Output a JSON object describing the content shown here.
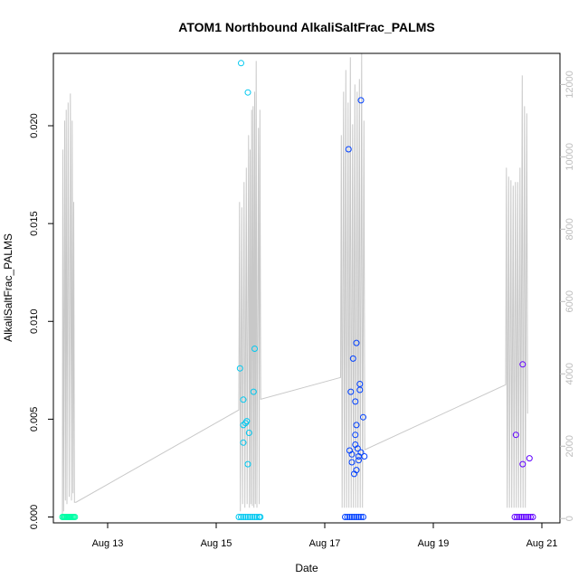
{
  "chart_data": {
    "type": "scatter",
    "title": "ATOM1 Northbound AlkaliSaltFrac_PALMS",
    "xlabel": "Date",
    "ylabel": "AlkaliSaltFrac_PALMS",
    "x_ticks": [
      "Aug 13",
      "Aug 15",
      "Aug 17",
      "Aug 19",
      "Aug 21"
    ],
    "y_ticks": [
      "0.000",
      "0.005",
      "0.010",
      "0.015",
      "0.020"
    ],
    "y2_ticks": [
      "0",
      "2000",
      "4000",
      "6000",
      "8000",
      "10000",
      "12000"
    ],
    "xlim": [
      "2016-08-12 00:00",
      "2016-08-21 08:00"
    ],
    "ylim": [
      -0.0003,
      0.0237
    ],
    "y2lim": [
      -120,
      12860
    ],
    "grid": false,
    "point_colors": [
      "#00ffa6",
      "#00c8f0",
      "#0040ff",
      "#6000ff"
    ],
    "line_color": "#c8c8c8",
    "series": [
      {
        "color": "#00ffa6",
        "points": [
          [
            "2016-08-12 04:00",
            0
          ],
          [
            "2016-08-12 04:30",
            0
          ],
          [
            "2016-08-12 05:00",
            0
          ],
          [
            "2016-08-12 05:30",
            0
          ],
          [
            "2016-08-12 06:00",
            0
          ],
          [
            "2016-08-12 06:30",
            0
          ],
          [
            "2016-08-12 07:00",
            0
          ],
          [
            "2016-08-12 07:30",
            0
          ],
          [
            "2016-08-12 08:00",
            0
          ],
          [
            "2016-08-12 08:30",
            0
          ],
          [
            "2016-08-12 09:00",
            0
          ],
          [
            "2016-08-12 09:30",
            0
          ]
        ]
      },
      {
        "color": "#00c8f0",
        "points": [
          [
            "2016-08-15 10:00",
            0
          ],
          [
            "2016-08-15 11:00",
            0
          ],
          [
            "2016-08-15 12:00",
            0
          ],
          [
            "2016-08-15 13:00",
            0
          ],
          [
            "2016-08-15 14:00",
            0
          ],
          [
            "2016-08-15 15:00",
            0
          ],
          [
            "2016-08-15 16:00",
            0
          ],
          [
            "2016-08-15 17:00",
            0
          ],
          [
            "2016-08-15 18:00",
            0
          ],
          [
            "2016-08-15 19:00",
            0
          ],
          [
            "2016-08-15 19:30",
            0
          ],
          [
            "2016-08-15 11:00",
            0.0232
          ],
          [
            "2016-08-15 14:00",
            0.0217
          ],
          [
            "2016-08-15 10:30",
            0.0076
          ],
          [
            "2016-08-15 17:00",
            0.0086
          ],
          [
            "2016-08-15 12:00",
            0.006
          ],
          [
            "2016-08-15 16:30",
            0.0064
          ],
          [
            "2016-08-15 13:30",
            0.0049
          ],
          [
            "2016-08-15 13:00",
            0.0048
          ],
          [
            "2016-08-15 12:00",
            0.0047
          ],
          [
            "2016-08-15 14:30",
            0.0043
          ],
          [
            "2016-08-15 12:00",
            0.0038
          ],
          [
            "2016-08-15 14:00",
            0.0027
          ]
        ]
      },
      {
        "color": "#0040ff",
        "points": [
          [
            "2016-08-17 09:00",
            0
          ],
          [
            "2016-08-17 10:00",
            0
          ],
          [
            "2016-08-17 11:00",
            0
          ],
          [
            "2016-08-17 12:00",
            0
          ],
          [
            "2016-08-17 13:00",
            0
          ],
          [
            "2016-08-17 14:00",
            0
          ],
          [
            "2016-08-17 15:00",
            0
          ],
          [
            "2016-08-17 16:00",
            0
          ],
          [
            "2016-08-17 17:00",
            0
          ],
          [
            "2016-08-17 16:00",
            0.0213
          ],
          [
            "2016-08-17 10:30",
            0.0188
          ],
          [
            "2016-08-17 14:00",
            0.0089
          ],
          [
            "2016-08-17 12:30",
            0.0081
          ],
          [
            "2016-08-17 15:30",
            0.0068
          ],
          [
            "2016-08-17 15:30",
            0.0065
          ],
          [
            "2016-08-17 11:30",
            0.0064
          ],
          [
            "2016-08-17 13:30",
            0.0059
          ],
          [
            "2016-08-17 17:00",
            0.0051
          ],
          [
            "2016-08-17 14:00",
            0.0047
          ],
          [
            "2016-08-17 13:30",
            0.0042
          ],
          [
            "2016-08-17 13:30",
            0.0037
          ],
          [
            "2016-08-17 14:30",
            0.0035
          ],
          [
            "2016-08-17 11:00",
            0.0034
          ],
          [
            "2016-08-17 16:00",
            0.0033
          ],
          [
            "2016-08-17 12:00",
            0.0032
          ],
          [
            "2016-08-17 15:00",
            0.0031
          ],
          [
            "2016-08-17 17:30",
            0.0031
          ],
          [
            "2016-08-17 15:00",
            0.0029
          ],
          [
            "2016-08-17 12:00",
            0.0028
          ],
          [
            "2016-08-17 14:00",
            0.0024
          ],
          [
            "2016-08-17 13:00",
            0.0022
          ]
        ]
      },
      {
        "color": "#6000ff",
        "points": [
          [
            "2016-08-20 12:00",
            0
          ],
          [
            "2016-08-20 13:00",
            0
          ],
          [
            "2016-08-20 14:00",
            0
          ],
          [
            "2016-08-20 15:00",
            0
          ],
          [
            "2016-08-20 16:00",
            0
          ],
          [
            "2016-08-20 17:00",
            0
          ],
          [
            "2016-08-20 18:00",
            0
          ],
          [
            "2016-08-20 19:00",
            0
          ],
          [
            "2016-08-20 20:00",
            0
          ],
          [
            "2016-08-20 15:30",
            0.0078
          ],
          [
            "2016-08-20 12:30",
            0.0042
          ],
          [
            "2016-08-20 18:30",
            0.003
          ],
          [
            "2016-08-20 15:30",
            0.0027
          ]
        ]
      }
    ],
    "secondary_line": [
      [
        "2016-08-12 04:00",
        0
      ],
      [
        "2016-08-12 04:10",
        10200
      ],
      [
        "2016-08-12 04:30",
        200
      ],
      [
        "2016-08-12 05:00",
        11000
      ],
      [
        "2016-08-12 05:20",
        500
      ],
      [
        "2016-08-12 05:40",
        11300
      ],
      [
        "2016-08-12 06:00",
        400
      ],
      [
        "2016-08-12 06:30",
        11500
      ],
      [
        "2016-08-12 07:00",
        600
      ],
      [
        "2016-08-12 07:30",
        11750
      ],
      [
        "2016-08-12 08:00",
        500
      ],
      [
        "2016-08-12 08:20",
        11000
      ],
      [
        "2016-08-12 08:40",
        700
      ],
      [
        "2016-08-12 09:00",
        8750
      ],
      [
        "2016-08-12 09:20",
        450
      ],
      [
        "2016-08-12 10:00",
        450
      ],
      [
        "2016-08-15 10:00",
        3000
      ],
      [
        "2016-08-15 10:20",
        8750
      ],
      [
        "2016-08-15 10:40",
        200
      ],
      [
        "2016-08-15 11:20",
        8600
      ],
      [
        "2016-08-15 11:40",
        400
      ],
      [
        "2016-08-15 12:20",
        9300
      ],
      [
        "2016-08-15 12:40",
        300
      ],
      [
        "2016-08-15 13:20",
        9700
      ],
      [
        "2016-08-15 13:40",
        400
      ],
      [
        "2016-08-15 14:20",
        10600
      ],
      [
        "2016-08-15 14:40",
        300
      ],
      [
        "2016-08-15 15:00",
        10200
      ],
      [
        "2016-08-15 15:20",
        400
      ],
      [
        "2016-08-15 15:40",
        11300
      ],
      [
        "2016-08-15 16:00",
        350
      ],
      [
        "2016-08-15 16:20",
        11400
      ],
      [
        "2016-08-15 16:40",
        300
      ],
      [
        "2016-08-15 17:00",
        11800
      ],
      [
        "2016-08-15 17:20",
        400
      ],
      [
        "2016-08-15 17:40",
        12650
      ],
      [
        "2016-08-15 18:00",
        300
      ],
      [
        "2016-08-15 18:40",
        10800
      ],
      [
        "2016-08-15 19:00",
        400
      ],
      [
        "2016-08-15 19:20",
        11300
      ],
      [
        "2016-08-15 19:40",
        3300
      ],
      [
        "2016-08-17 07:00",
        3900
      ],
      [
        "2016-08-17 07:20",
        10600
      ],
      [
        "2016-08-17 07:40",
        300
      ],
      [
        "2016-08-17 08:20",
        11800
      ],
      [
        "2016-08-17 08:40",
        300
      ],
      [
        "2016-08-17 09:20",
        12400
      ],
      [
        "2016-08-17 09:40",
        300
      ],
      [
        "2016-08-17 10:20",
        11500
      ],
      [
        "2016-08-17 10:40",
        300
      ],
      [
        "2016-08-17 11:20",
        12750
      ],
      [
        "2016-08-17 11:40",
        300
      ],
      [
        "2016-08-17 12:20",
        10900
      ],
      [
        "2016-08-17 12:40",
        300
      ],
      [
        "2016-08-17 13:20",
        12000
      ],
      [
        "2016-08-17 13:40",
        300
      ],
      [
        "2016-08-17 14:20",
        11800
      ],
      [
        "2016-08-17 14:40",
        300
      ],
      [
        "2016-08-17 15:20",
        12150
      ],
      [
        "2016-08-17 15:40",
        300
      ],
      [
        "2016-08-17 16:20",
        12850
      ],
      [
        "2016-08-17 16:40",
        300
      ],
      [
        "2016-08-17 17:20",
        11000
      ],
      [
        "2016-08-17 17:40",
        1900
      ],
      [
        "2016-08-20 08:00",
        3700
      ],
      [
        "2016-08-20 08:20",
        9700
      ],
      [
        "2016-08-20 08:40",
        300
      ],
      [
        "2016-08-20 09:20",
        9450
      ],
      [
        "2016-08-20 09:40",
        300
      ],
      [
        "2016-08-20 10:20",
        9350
      ],
      [
        "2016-08-20 10:40",
        300
      ],
      [
        "2016-08-20 11:20",
        9200
      ],
      [
        "2016-08-20 11:40",
        300
      ],
      [
        "2016-08-20 12:20",
        9300
      ],
      [
        "2016-08-20 12:40",
        300
      ],
      [
        "2016-08-20 13:20",
        9300
      ],
      [
        "2016-08-20 13:40",
        300
      ],
      [
        "2016-08-20 14:20",
        9700
      ],
      [
        "2016-08-20 14:40",
        300
      ],
      [
        "2016-08-20 15:20",
        12250
      ],
      [
        "2016-08-20 15:40",
        300
      ],
      [
        "2016-08-20 16:20",
        11400
      ],
      [
        "2016-08-20 16:40",
        300
      ],
      [
        "2016-08-20 17:20",
        11200
      ],
      [
        "2016-08-20 17:40",
        2900
      ]
    ]
  }
}
